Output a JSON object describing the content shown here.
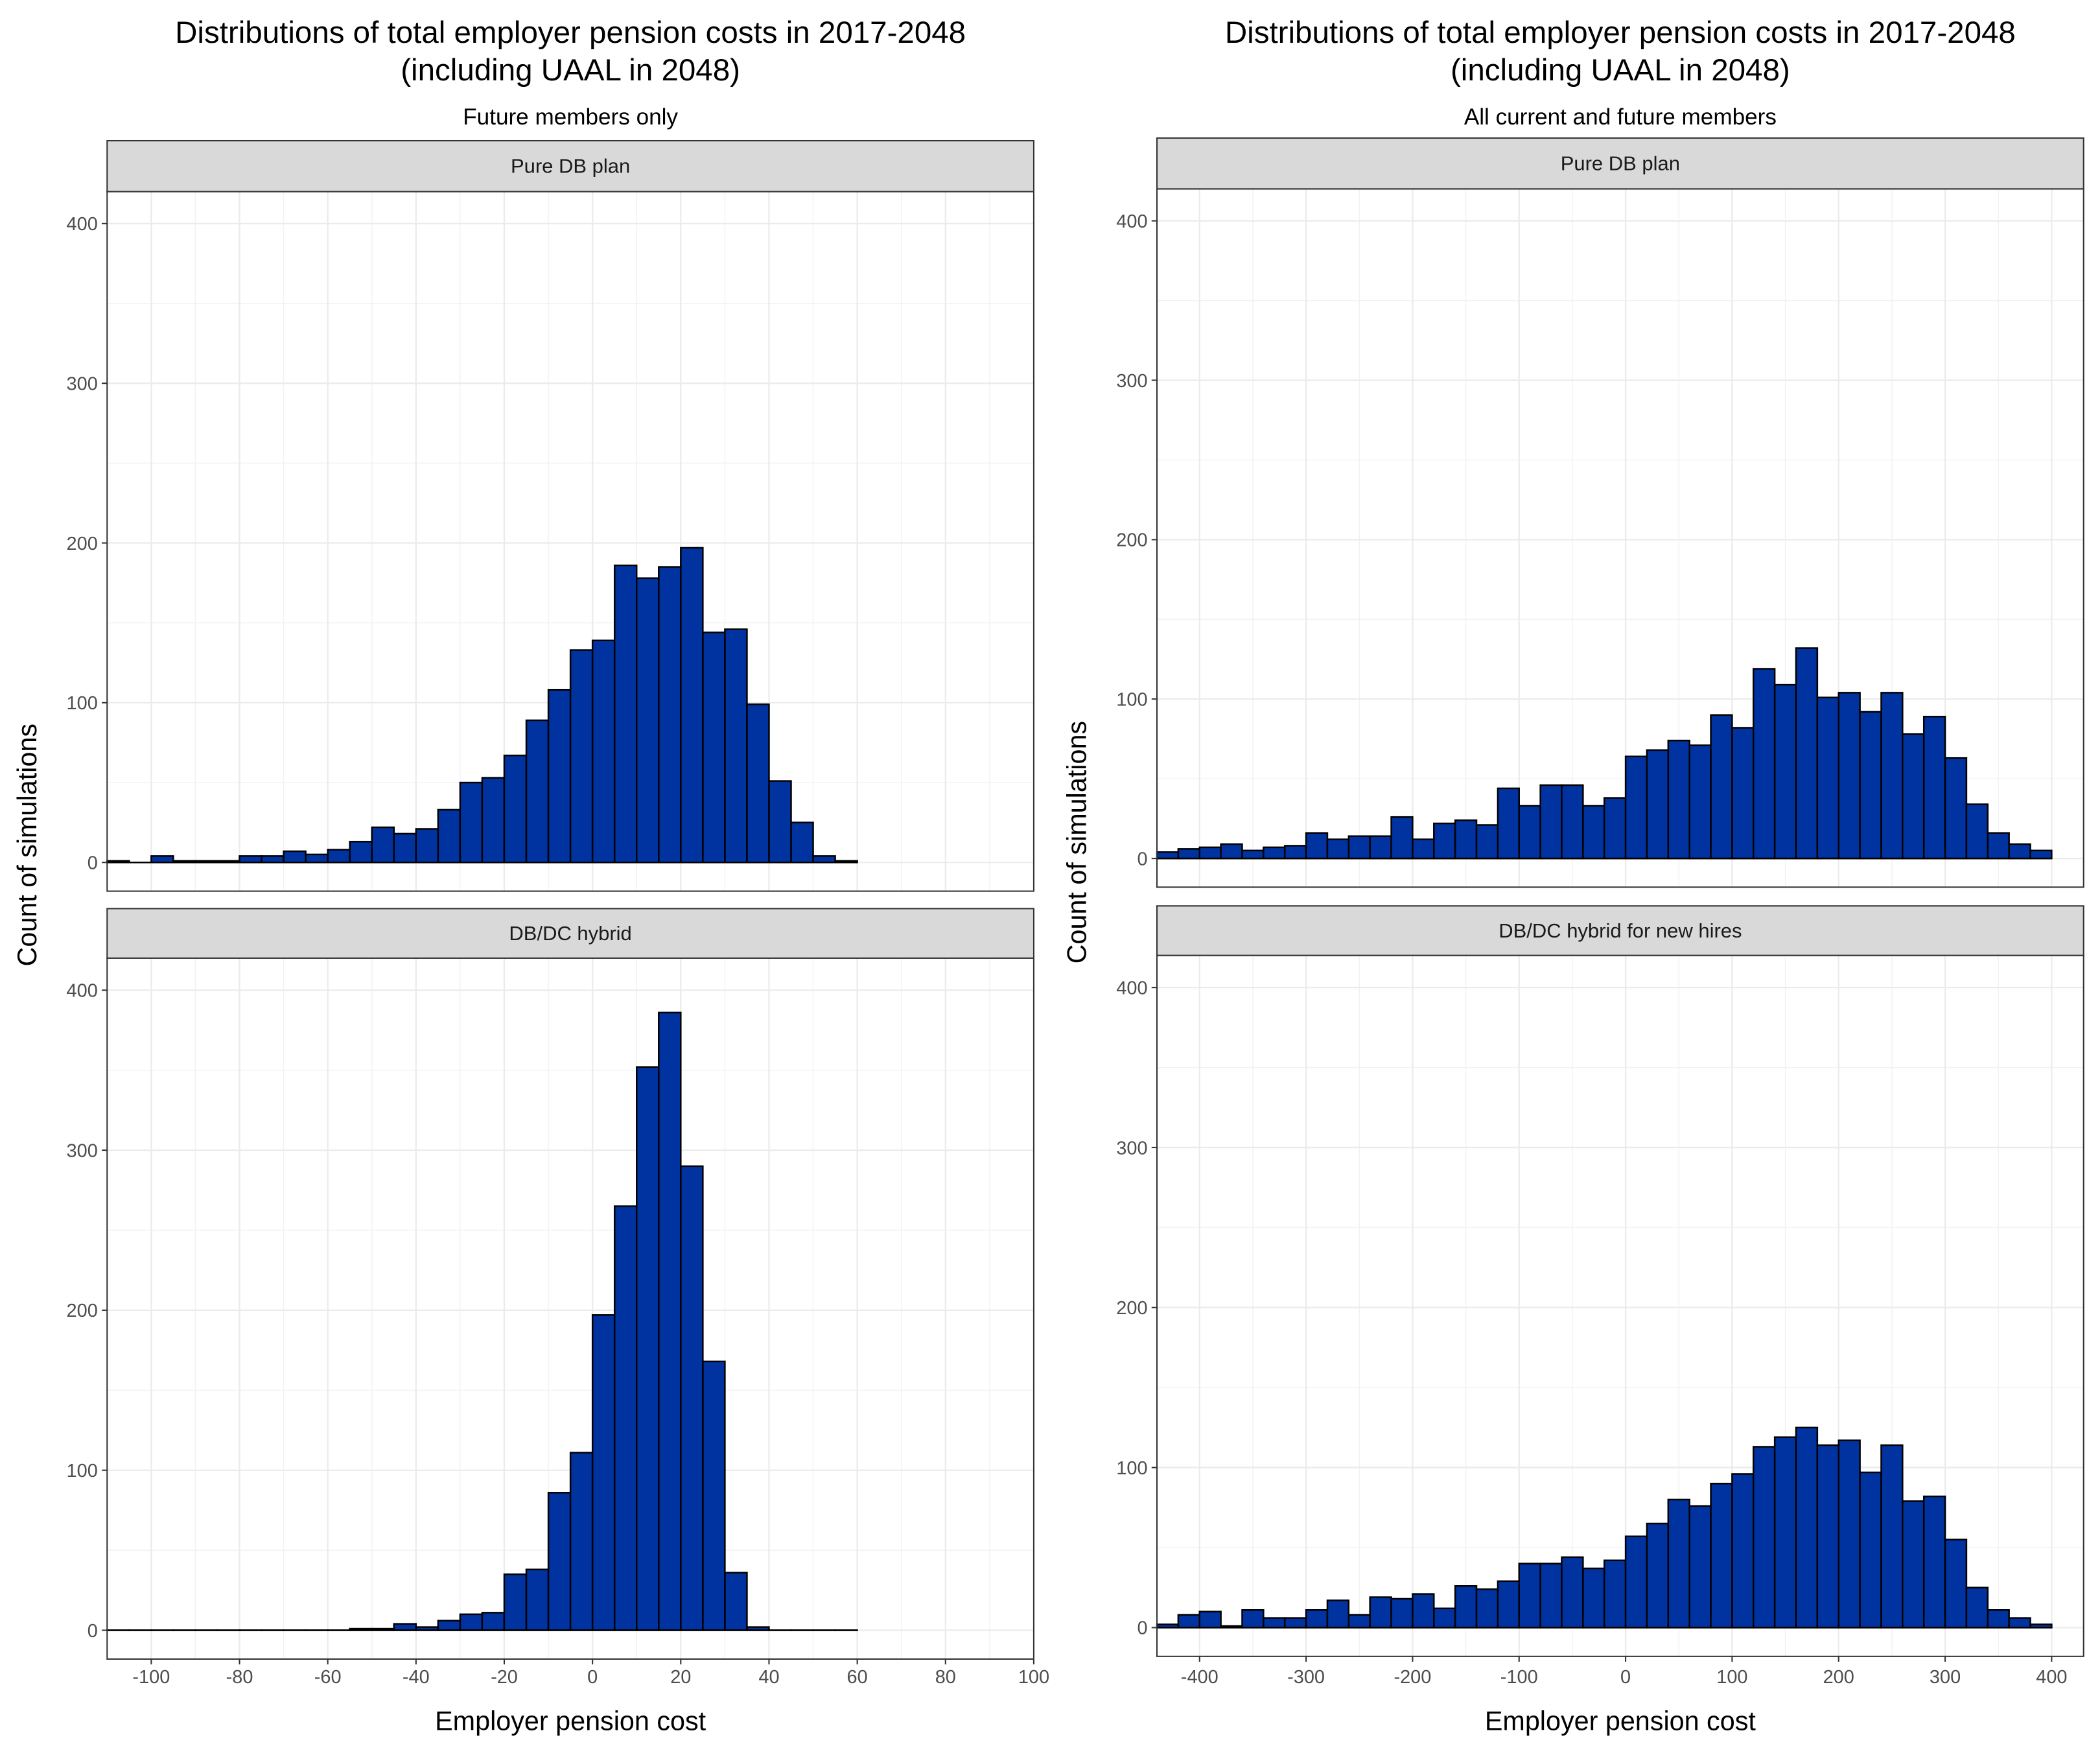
{
  "chart_data": [
    {
      "type": "bar",
      "title": [
        "Distributions of total employer pension costs in 2017-2048",
        "(including UAAL in 2048)"
      ],
      "subtitle": "Future members only",
      "xlabel": "Employer pension cost",
      "ylabel": "Count of simulations",
      "xlim": [
        -110,
        100
      ],
      "ylim": [
        -18,
        420
      ],
      "x_ticks": [
        -100,
        -80,
        -60,
        -40,
        -20,
        0,
        20,
        40,
        60,
        80,
        100
      ],
      "y_ticks": [
        0,
        100,
        200,
        300,
        400
      ],
      "bin_width": 5,
      "bar_color": "#0033a0",
      "grid": true,
      "panels": [
        {
          "label": "Pure DB plan",
          "bins": [
            {
              "x": -107.5,
              "count": 1
            },
            {
              "x": -102.5,
              "count": 0
            },
            {
              "x": -97.5,
              "count": 4
            },
            {
              "x": -92.5,
              "count": 1
            },
            {
              "x": -87.5,
              "count": 1
            },
            {
              "x": -82.5,
              "count": 1
            },
            {
              "x": -77.5,
              "count": 4
            },
            {
              "x": -72.5,
              "count": 4
            },
            {
              "x": -67.5,
              "count": 7
            },
            {
              "x": -62.5,
              "count": 5
            },
            {
              "x": -57.5,
              "count": 8
            },
            {
              "x": -52.5,
              "count": 13
            },
            {
              "x": -47.5,
              "count": 22
            },
            {
              "x": -42.5,
              "count": 18
            },
            {
              "x": -37.5,
              "count": 21
            },
            {
              "x": -32.5,
              "count": 33
            },
            {
              "x": -27.5,
              "count": 50
            },
            {
              "x": -22.5,
              "count": 53
            },
            {
              "x": -17.5,
              "count": 67
            },
            {
              "x": -12.5,
              "count": 89
            },
            {
              "x": -7.5,
              "count": 108
            },
            {
              "x": -2.5,
              "count": 133
            },
            {
              "x": 2.5,
              "count": 139
            },
            {
              "x": 7.5,
              "count": 186
            },
            {
              "x": 12.5,
              "count": 178
            },
            {
              "x": 17.5,
              "count": 185
            },
            {
              "x": 22.5,
              "count": 197
            },
            {
              "x": 27.5,
              "count": 144
            },
            {
              "x": 32.5,
              "count": 146
            },
            {
              "x": 37.5,
              "count": 99
            },
            {
              "x": 42.5,
              "count": 51
            },
            {
              "x": 47.5,
              "count": 25
            },
            {
              "x": 52.5,
              "count": 4
            },
            {
              "x": 57.5,
              "count": 1
            }
          ]
        },
        {
          "label": "DB/DC hybrid",
          "bins": [
            {
              "x": -107.5,
              "count": 0
            },
            {
              "x": -102.5,
              "count": 0
            },
            {
              "x": -97.5,
              "count": 0
            },
            {
              "x": -92.5,
              "count": 0
            },
            {
              "x": -87.5,
              "count": 0
            },
            {
              "x": -82.5,
              "count": 0
            },
            {
              "x": -77.5,
              "count": 0
            },
            {
              "x": -72.5,
              "count": 0
            },
            {
              "x": -67.5,
              "count": 0
            },
            {
              "x": -62.5,
              "count": 0
            },
            {
              "x": -57.5,
              "count": 0
            },
            {
              "x": -52.5,
              "count": 1
            },
            {
              "x": -47.5,
              "count": 1
            },
            {
              "x": -42.5,
              "count": 4
            },
            {
              "x": -37.5,
              "count": 2
            },
            {
              "x": -32.5,
              "count": 6
            },
            {
              "x": -27.5,
              "count": 10
            },
            {
              "x": -22.5,
              "count": 11
            },
            {
              "x": -17.5,
              "count": 35
            },
            {
              "x": -12.5,
              "count": 38
            },
            {
              "x": -7.5,
              "count": 86
            },
            {
              "x": -2.5,
              "count": 111
            },
            {
              "x": 2.5,
              "count": 197
            },
            {
              "x": 7.5,
              "count": 265
            },
            {
              "x": 12.5,
              "count": 352
            },
            {
              "x": 17.5,
              "count": 386
            },
            {
              "x": 22.5,
              "count": 290
            },
            {
              "x": 27.5,
              "count": 168
            },
            {
              "x": 32.5,
              "count": 36
            },
            {
              "x": 37.5,
              "count": 2
            },
            {
              "x": 42.5,
              "count": 0
            },
            {
              "x": 47.5,
              "count": 0
            },
            {
              "x": 52.5,
              "count": 0
            },
            {
              "x": 57.5,
              "count": 0
            }
          ]
        }
      ]
    },
    {
      "type": "bar",
      "title": [
        "Distributions of total employer pension costs in 2017-2048",
        "(including UAAL in 2048)"
      ],
      "subtitle": "All current and future members",
      "xlabel": "Employer pension cost",
      "ylabel": "Count of simulations",
      "xlim": [
        -440,
        430
      ],
      "ylim": [
        -18,
        420
      ],
      "x_ticks": [
        -400,
        -300,
        -200,
        -100,
        0,
        100,
        200,
        300,
        400
      ],
      "y_ticks": [
        0,
        100,
        200,
        300,
        400
      ],
      "bin_width": 20,
      "bar_color": "#0033a0",
      "grid": true,
      "panels": [
        {
          "label": "Pure DB plan",
          "bins": [
            {
              "x": -430,
              "count": 4
            },
            {
              "x": -410,
              "count": 6
            },
            {
              "x": -390,
              "count": 7
            },
            {
              "x": -370,
              "count": 9
            },
            {
              "x": -350,
              "count": 5
            },
            {
              "x": -330,
              "count": 7
            },
            {
              "x": -310,
              "count": 8
            },
            {
              "x": -290,
              "count": 16
            },
            {
              "x": -270,
              "count": 12
            },
            {
              "x": -250,
              "count": 14
            },
            {
              "x": -230,
              "count": 14
            },
            {
              "x": -210,
              "count": 26
            },
            {
              "x": -190,
              "count": 12
            },
            {
              "x": -170,
              "count": 22
            },
            {
              "x": -150,
              "count": 24
            },
            {
              "x": -130,
              "count": 21
            },
            {
              "x": -110,
              "count": 44
            },
            {
              "x": -90,
              "count": 33
            },
            {
              "x": -70,
              "count": 46
            },
            {
              "x": -50,
              "count": 46
            },
            {
              "x": -30,
              "count": 33
            },
            {
              "x": -10,
              "count": 38
            },
            {
              "x": 10,
              "count": 64
            },
            {
              "x": 30,
              "count": 68
            },
            {
              "x": 50,
              "count": 74
            },
            {
              "x": 70,
              "count": 71
            },
            {
              "x": 90,
              "count": 90
            },
            {
              "x": 110,
              "count": 82
            },
            {
              "x": 130,
              "count": 119
            },
            {
              "x": 150,
              "count": 109
            },
            {
              "x": 170,
              "count": 132
            },
            {
              "x": 190,
              "count": 101
            },
            {
              "x": 210,
              "count": 104
            },
            {
              "x": 230,
              "count": 92
            },
            {
              "x": 250,
              "count": 104
            },
            {
              "x": 270,
              "count": 78
            },
            {
              "x": 290,
              "count": 89
            },
            {
              "x": 310,
              "count": 63
            },
            {
              "x": 330,
              "count": 34
            },
            {
              "x": 350,
              "count": 16
            },
            {
              "x": 370,
              "count": 9
            },
            {
              "x": 390,
              "count": 5
            }
          ]
        },
        {
          "label": "DB/DC hybrid for new hires",
          "bins": [
            {
              "x": -430,
              "count": 2
            },
            {
              "x": -410,
              "count": 8
            },
            {
              "x": -390,
              "count": 10
            },
            {
              "x": -370,
              "count": 1
            },
            {
              "x": -350,
              "count": 11
            },
            {
              "x": -330,
              "count": 6
            },
            {
              "x": -310,
              "count": 6
            },
            {
              "x": -290,
              "count": 11
            },
            {
              "x": -270,
              "count": 17
            },
            {
              "x": -250,
              "count": 8
            },
            {
              "x": -230,
              "count": 19
            },
            {
              "x": -210,
              "count": 18
            },
            {
              "x": -190,
              "count": 21
            },
            {
              "x": -170,
              "count": 12
            },
            {
              "x": -150,
              "count": 26
            },
            {
              "x": -130,
              "count": 24
            },
            {
              "x": -110,
              "count": 29
            },
            {
              "x": -90,
              "count": 40
            },
            {
              "x": -70,
              "count": 40
            },
            {
              "x": -50,
              "count": 44
            },
            {
              "x": -30,
              "count": 37
            },
            {
              "x": -10,
              "count": 42
            },
            {
              "x": 10,
              "count": 57
            },
            {
              "x": 30,
              "count": 65
            },
            {
              "x": 50,
              "count": 80
            },
            {
              "x": 70,
              "count": 76
            },
            {
              "x": 90,
              "count": 90
            },
            {
              "x": 110,
              "count": 96
            },
            {
              "x": 130,
              "count": 113
            },
            {
              "x": 150,
              "count": 119
            },
            {
              "x": 170,
              "count": 125
            },
            {
              "x": 190,
              "count": 114
            },
            {
              "x": 210,
              "count": 117
            },
            {
              "x": 230,
              "count": 97
            },
            {
              "x": 250,
              "count": 114
            },
            {
              "x": 270,
              "count": 79
            },
            {
              "x": 290,
              "count": 82
            },
            {
              "x": 310,
              "count": 55
            },
            {
              "x": 330,
              "count": 25
            },
            {
              "x": 350,
              "count": 11
            },
            {
              "x": 370,
              "count": 6
            },
            {
              "x": 390,
              "count": 2
            }
          ]
        }
      ]
    }
  ]
}
